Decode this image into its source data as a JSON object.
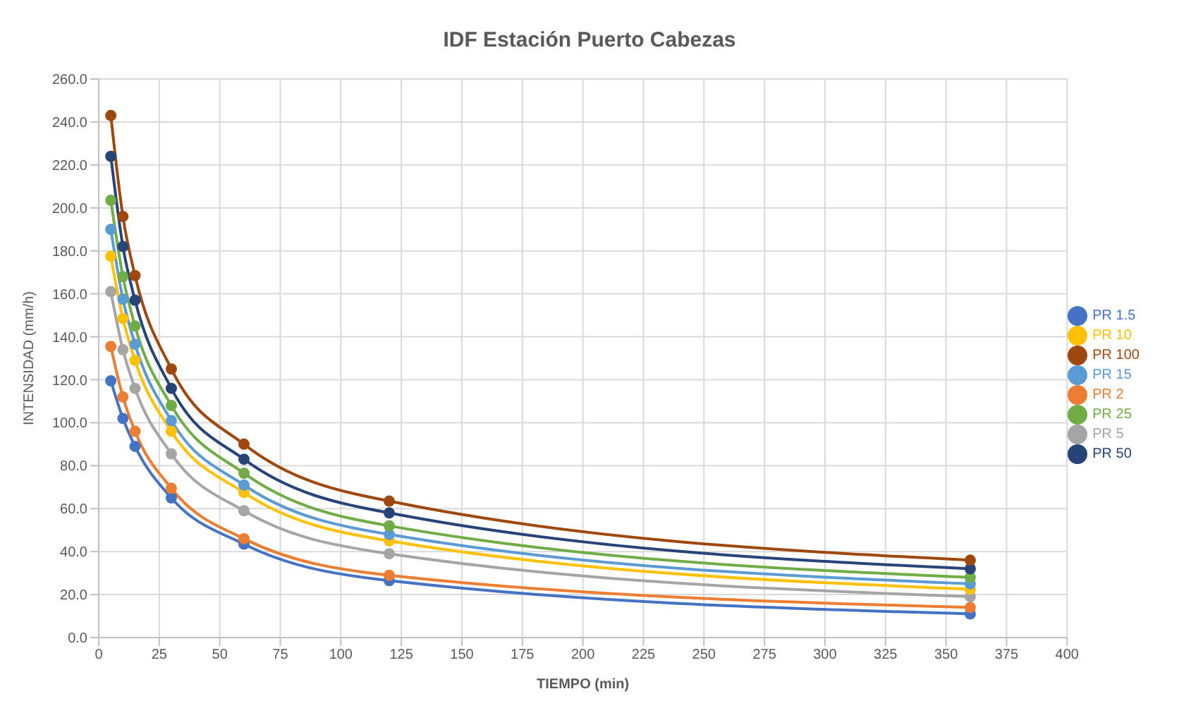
{
  "chart_data": {
    "type": "line",
    "title": "IDF Estación Puerto Cabezas",
    "xlabel": "TIEMPO (min)",
    "ylabel": "INTENSIDAD (mm/h)",
    "x": [
      5,
      10,
      15,
      30,
      60,
      120,
      360
    ],
    "series": [
      {
        "name": "PR 1.5",
        "color": "#4472c4",
        "values": [
          119.5,
          102,
          89,
          65,
          43.5,
          26.5,
          11
        ]
      },
      {
        "name": "PR 2",
        "color": "#ed7d31",
        "values": [
          135.5,
          112,
          96,
          69.5,
          46,
          29,
          14
        ]
      },
      {
        "name": "PR 5",
        "color": "#a5a5a5",
        "values": [
          161,
          134,
          116,
          85.5,
          59,
          39,
          19
        ]
      },
      {
        "name": "PR 10",
        "color": "#ffc000",
        "values": [
          177.5,
          148.5,
          129,
          96,
          67.5,
          45,
          22.5
        ]
      },
      {
        "name": "PR 15",
        "color": "#5b9bd5",
        "values": [
          190,
          157.5,
          136.5,
          101,
          71,
          48,
          25
        ]
      },
      {
        "name": "PR 25",
        "color": "#70ad47",
        "values": [
          203.5,
          168,
          145,
          108,
          76.5,
          52,
          28
        ]
      },
      {
        "name": "PR 50",
        "color": "#264478",
        "values": [
          224,
          182,
          157,
          116,
          83,
          58,
          32
        ]
      },
      {
        "name": "PR 100",
        "color": "#9e480e",
        "values": [
          243,
          196,
          168.5,
          125,
          90,
          63.5,
          36
        ]
      }
    ],
    "xlim": [
      0,
      400
    ],
    "xticks": [
      0,
      25,
      50,
      75,
      100,
      125,
      150,
      175,
      200,
      225,
      250,
      275,
      300,
      325,
      350,
      375,
      400
    ],
    "ylim": [
      0,
      260
    ],
    "yticks": [
      {
        "value": 0,
        "label": "0.0"
      },
      {
        "value": 20,
        "label": "20.0"
      },
      {
        "value": 40,
        "label": "40.0"
      },
      {
        "value": 60,
        "label": "60.0"
      },
      {
        "value": 80,
        "label": "80.0"
      },
      {
        "value": 100,
        "label": "100.0"
      },
      {
        "value": 120,
        "label": "120.0"
      },
      {
        "value": 140,
        "label": "140.0"
      },
      {
        "value": 160,
        "label": "160.0"
      },
      {
        "value": 180,
        "label": "180.0"
      },
      {
        "value": 200,
        "label": "200.0"
      },
      {
        "value": 220,
        "label": "220.0"
      },
      {
        "value": 240,
        "label": "240.0"
      },
      {
        "value": 260,
        "label": "260.0"
      }
    ],
    "grid": true,
    "legend": "right",
    "marker": "circle",
    "line_style": "solid"
  }
}
